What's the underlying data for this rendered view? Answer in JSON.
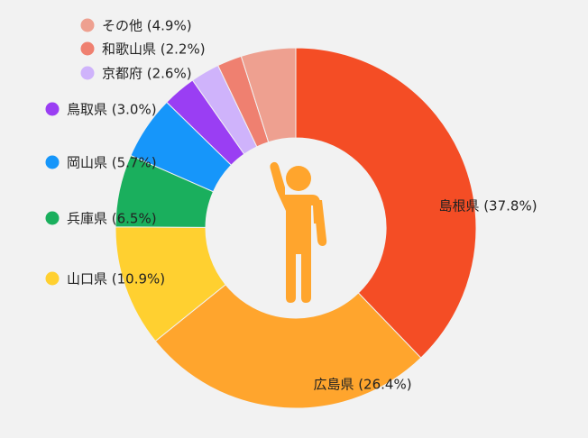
{
  "chart_data": {
    "type": "pie",
    "donut": true,
    "center_icon": "person-raising-hand-icon",
    "center_icon_color": "#FFA52D",
    "slices": [
      {
        "label": "島根県 (37.8%)",
        "value": 37.8,
        "color": "#F44D25"
      },
      {
        "label": "広島県 (26.4%)",
        "value": 26.4,
        "color": "#FFA52D"
      },
      {
        "label": "山口県 (10.9%)",
        "value": 10.9,
        "color": "#FFD030"
      },
      {
        "label": "兵庫県 (6.5%)",
        "value": 6.5,
        "color": "#1AAF5D"
      },
      {
        "label": "岡山県 (5.7%)",
        "value": 5.7,
        "color": "#1696FA"
      },
      {
        "label": "鳥取県 (3.0%)",
        "value": 3.0,
        "color": "#9A3EF3"
      },
      {
        "label": "京都府 (2.6%)",
        "value": 2.6,
        "color": "#CFB3FB"
      },
      {
        "label": "和歌山県 (2.2%)",
        "value": 2.2,
        "color": "#EF8070"
      },
      {
        "label": "その他 (4.9%)",
        "value": 4.9,
        "color": "#EEA090"
      }
    ]
  }
}
